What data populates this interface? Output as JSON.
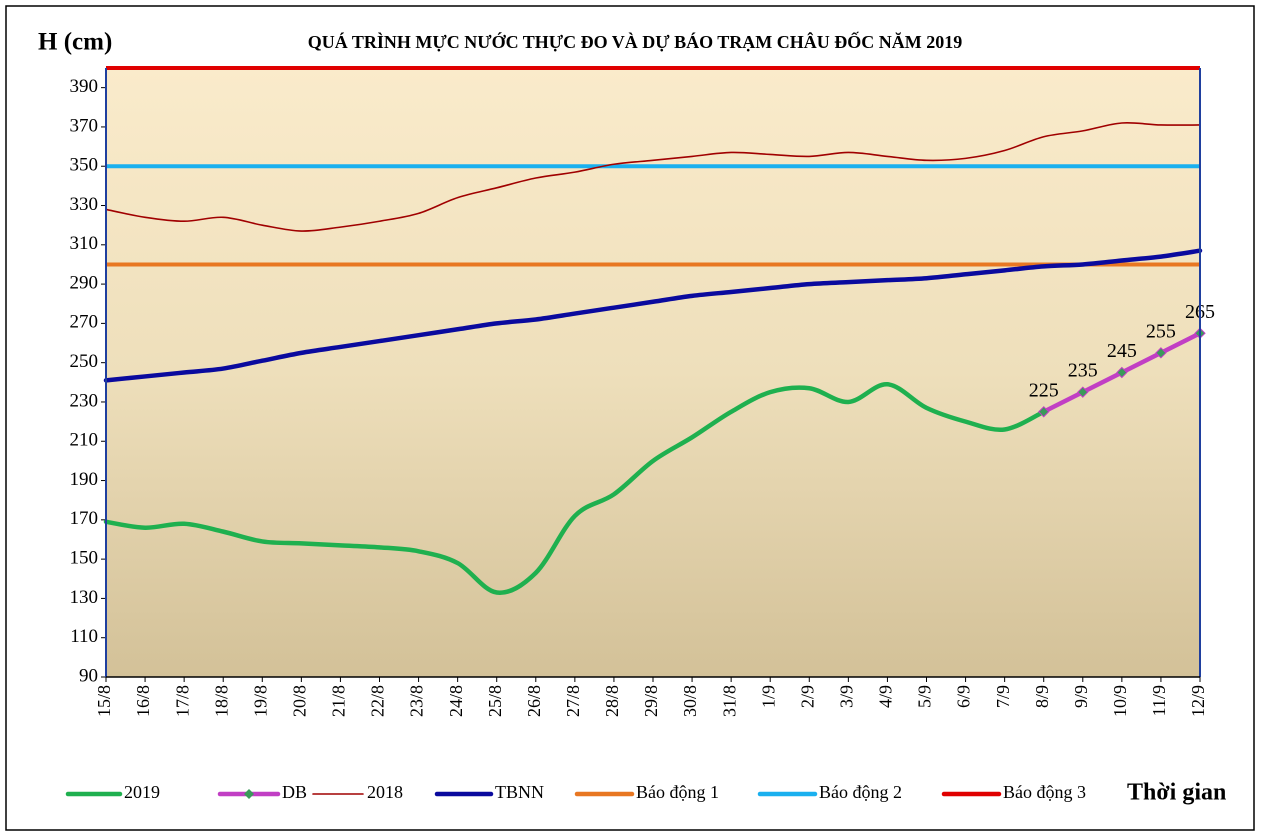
{
  "chart_data": {
    "type": "line",
    "title": "QUÁ TRÌNH MỰC NƯỚC THỰC ĐO VÀ DỰ BÁO TRẠM CHÂU ĐỐC NĂM 2019",
    "y_label": "H (cm)",
    "x_label": "Thời gian",
    "categories": [
      "15/8",
      "16/8",
      "17/8",
      "18/8",
      "19/8",
      "20/8",
      "21/8",
      "22/8",
      "23/8",
      "24/8",
      "25/8",
      "26/8",
      "27/8",
      "28/8",
      "29/8",
      "30/8",
      "31/8",
      "1/9",
      "2/9",
      "3/9",
      "4/9",
      "5/9",
      "6/9",
      "7/9",
      "8/9",
      "9/9",
      "10/9",
      "11/9",
      "12/9"
    ],
    "series": [
      {
        "name": "2019",
        "color": "#1fb04f",
        "smooth": true,
        "values": [
          169,
          166,
          168,
          164,
          159,
          158,
          157,
          156,
          154,
          148,
          133,
          143,
          172,
          183,
          200,
          212,
          225,
          235,
          237,
          230,
          239,
          227,
          220,
          216,
          225,
          null,
          null,
          null,
          null
        ]
      },
      {
        "name": "DB",
        "color": "#c13fc4",
        "marker_color": "#3a9a5a",
        "smooth": false,
        "show_value_labels": true,
        "values": [
          null,
          null,
          null,
          null,
          null,
          null,
          null,
          null,
          null,
          null,
          null,
          null,
          null,
          null,
          null,
          null,
          null,
          null,
          null,
          null,
          null,
          null,
          null,
          null,
          225,
          235,
          245,
          255,
          265
        ]
      },
      {
        "name": "2018",
        "color": "#a00000",
        "smooth": true,
        "thin": true,
        "values": [
          328,
          324,
          322,
          324,
          320,
          317,
          319,
          322,
          326,
          334,
          339,
          344,
          347,
          351,
          353,
          355,
          357,
          356,
          355,
          357,
          355,
          353,
          354,
          358,
          365,
          368,
          372,
          371,
          371
        ]
      },
      {
        "name": "TBNN",
        "color": "#0a0a9e",
        "smooth": true,
        "values": [
          241,
          243,
          245,
          247,
          251,
          255,
          258,
          261,
          264,
          267,
          270,
          272,
          275,
          278,
          281,
          284,
          286,
          288,
          290,
          291,
          292,
          293,
          295,
          297,
          299,
          300,
          302,
          304,
          307
        ]
      }
    ],
    "thresholds": [
      {
        "name": "Báo động 1",
        "color": "#e87722",
        "value": 300
      },
      {
        "name": "Báo động 2",
        "color": "#1ab0ef",
        "value": 350
      },
      {
        "name": "Báo động 3",
        "color": "#e00000",
        "value": 400
      }
    ],
    "ylim": [
      90,
      400
    ],
    "yticks": [
      90,
      110,
      130,
      150,
      170,
      190,
      210,
      230,
      250,
      270,
      290,
      310,
      330,
      350,
      370,
      390
    ]
  }
}
